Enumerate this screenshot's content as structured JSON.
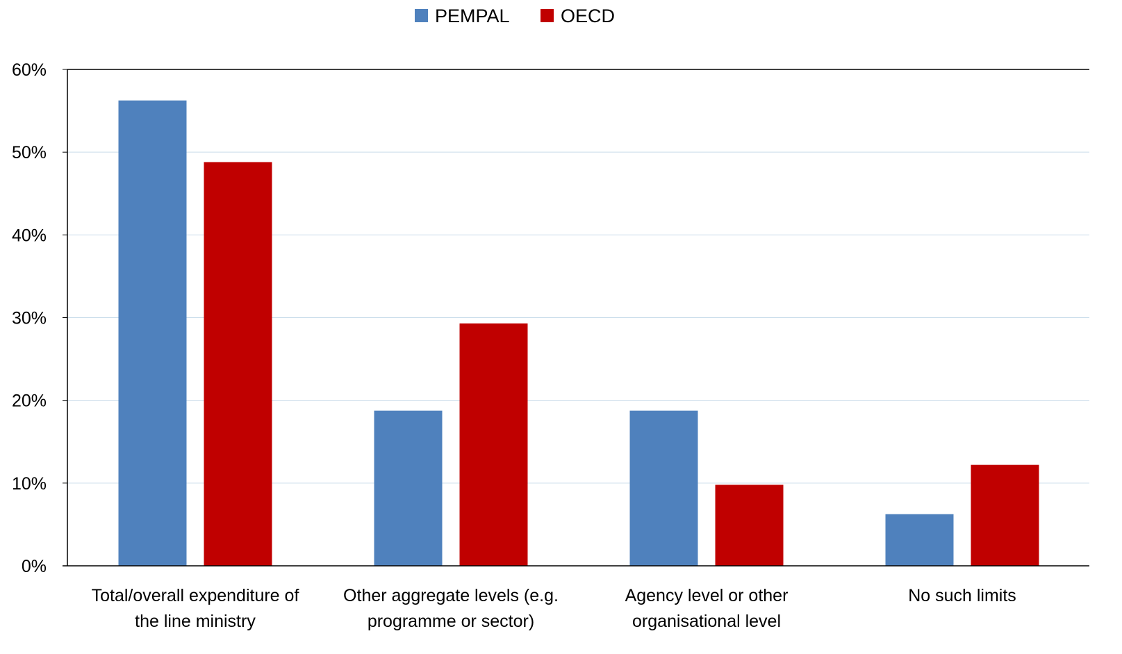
{
  "chart_data": {
    "type": "bar",
    "categories": [
      [
        "Total/overall expenditure of",
        "the line ministry"
      ],
      [
        "Other aggregate levels (e.g.",
        "programme or sector)"
      ],
      [
        "Agency level or other",
        "organisational level"
      ],
      [
        "No such limits"
      ]
    ],
    "series": [
      {
        "name": "PEMPAL",
        "color": "#4F81BD",
        "values": [
          56.25,
          18.75,
          18.75,
          6.25
        ]
      },
      {
        "name": "OECD",
        "color": "#C00000",
        "values": [
          48.8,
          29.3,
          9.8,
          12.2
        ]
      }
    ],
    "yticks": [
      "0%",
      "10%",
      "20%",
      "30%",
      "40%",
      "50%",
      "60%"
    ],
    "ylim": [
      0,
      60
    ],
    "y_unit": "%",
    "grid": true,
    "legend_position": "top-center"
  }
}
